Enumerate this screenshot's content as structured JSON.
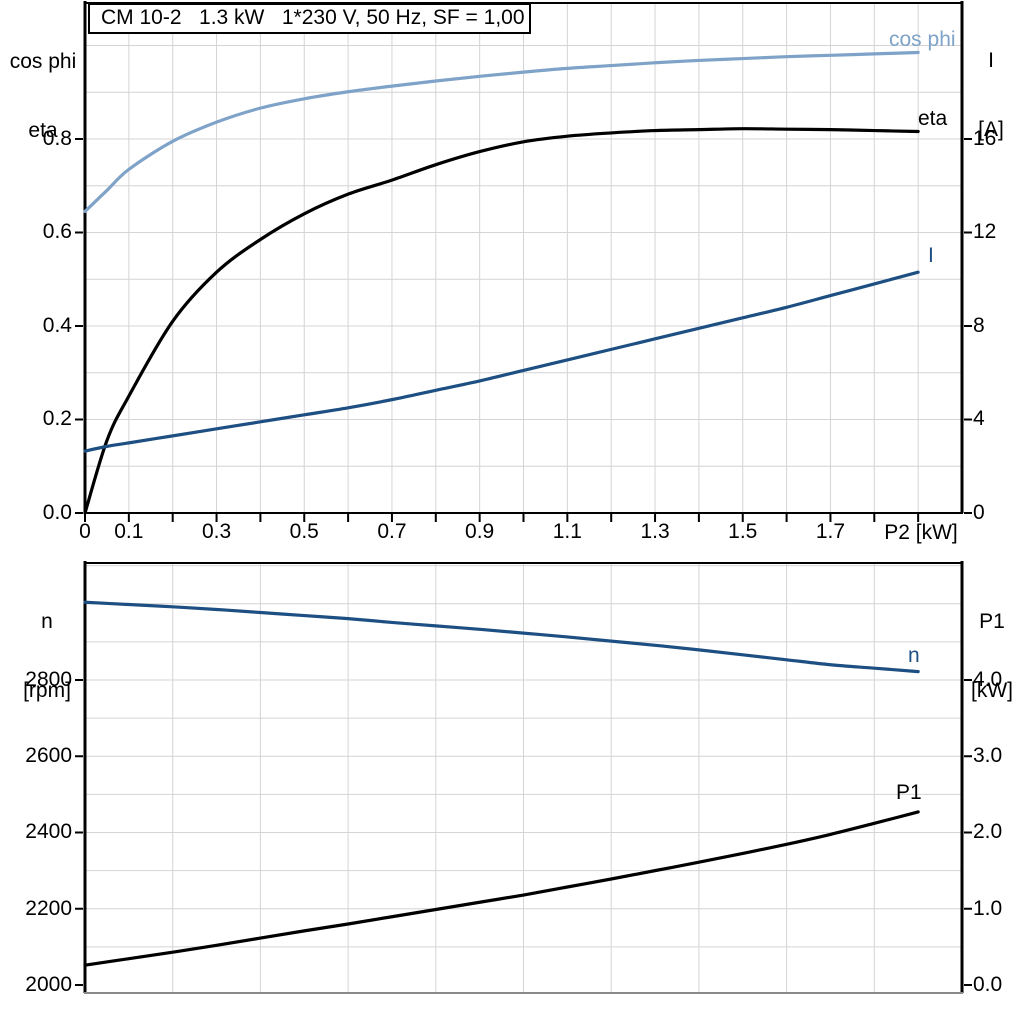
{
  "panel": {
    "background": "#ffffff",
    "colors": {
      "black": "#000000",
      "light_blue": "#7fa3c8",
      "dark_blue": "#1d4f82",
      "grid": "#d4d4d6",
      "frame_gray": "#8a8a8a"
    }
  },
  "chart_data": [
    {
      "id": "motor-electrical",
      "type": "line",
      "title": "CM 10-2   1.3 kW   1*230 V, 50 Hz, SF = 1,00",
      "xlabel": "P2 [kW]",
      "legend_position": "end-of-curve",
      "grid": true,
      "x_axis": {
        "min": 0,
        "max": 2.0,
        "grid_values": [
          0.1,
          0.2,
          0.3,
          0.4,
          0.5,
          0.6,
          0.7,
          0.8,
          0.9,
          1.0,
          1.1,
          1.2,
          1.3,
          1.4,
          1.5,
          1.6,
          1.7,
          1.8,
          1.9
        ],
        "tick_values": [
          0,
          0.1,
          0.2,
          0.3,
          0.4,
          0.5,
          0.6,
          0.7,
          0.8,
          0.9,
          1.0,
          1.1,
          1.2,
          1.3,
          1.4,
          1.5,
          1.6,
          1.7,
          1.8,
          1.9
        ],
        "tick_labels": [
          {
            "value": 0,
            "text": "0"
          },
          {
            "value": 0.1,
            "text": "0.1"
          },
          {
            "value": 0.3,
            "text": "0.3"
          },
          {
            "value": 0.5,
            "text": "0.5"
          },
          {
            "value": 0.7,
            "text": "0.7"
          },
          {
            "value": 0.9,
            "text": "0.9"
          },
          {
            "value": 1.1,
            "text": "1.1"
          },
          {
            "value": 1.3,
            "text": "1.3"
          },
          {
            "value": 1.5,
            "text": "1.5"
          },
          {
            "value": 1.7,
            "text": "1.7"
          }
        ]
      },
      "y_left": {
        "title_lines": [
          "cos phi",
          "eta"
        ],
        "min": 0,
        "max": 1.093,
        "grid_values": [
          0.1,
          0.2,
          0.3,
          0.4,
          0.5,
          0.6,
          0.7,
          0.8,
          0.9,
          1.0
        ],
        "ticks": [
          {
            "value": 0,
            "text": "0.0"
          },
          {
            "value": 0.2,
            "text": "0.2"
          },
          {
            "value": 0.4,
            "text": "0.4"
          },
          {
            "value": 0.6,
            "text": "0.6"
          },
          {
            "value": 0.8,
            "text": "0.8"
          }
        ]
      },
      "y_right": {
        "title_lines": [
          "I",
          "[A]"
        ],
        "offset_left": 0,
        "left_per_unit": 0.05,
        "ticks": [
          {
            "value": 0,
            "text": "0"
          },
          {
            "value": 4,
            "text": "4"
          },
          {
            "value": 8,
            "text": "8"
          },
          {
            "value": 12,
            "text": "12"
          },
          {
            "value": 16,
            "text": "16"
          }
        ]
      },
      "series": [
        {
          "name": "cos phi",
          "label": "cos phi",
          "axis": "left",
          "color": "#7fa3c8",
          "x": [
            0,
            0.05,
            0.1,
            0.2,
            0.3,
            0.4,
            0.5,
            0.6,
            0.7,
            0.8,
            0.9,
            1.0,
            1.1,
            1.2,
            1.3,
            1.4,
            1.5,
            1.6,
            1.7,
            1.8,
            1.9
          ],
          "y": [
            0.645,
            0.69,
            0.735,
            0.795,
            0.836,
            0.866,
            0.886,
            0.901,
            0.913,
            0.924,
            0.934,
            0.943,
            0.951,
            0.957,
            0.963,
            0.968,
            0.972,
            0.976,
            0.979,
            0.982,
            0.985
          ]
        },
        {
          "name": "eta",
          "label": "eta",
          "axis": "left",
          "color": "#000000",
          "x": [
            0,
            0.05,
            0.1,
            0.2,
            0.3,
            0.4,
            0.5,
            0.6,
            0.7,
            0.8,
            0.9,
            1.0,
            1.1,
            1.2,
            1.3,
            1.4,
            1.5,
            1.6,
            1.7,
            1.8,
            1.9
          ],
          "y": [
            0,
            0.155,
            0.25,
            0.41,
            0.515,
            0.585,
            0.64,
            0.682,
            0.712,
            0.745,
            0.773,
            0.794,
            0.806,
            0.813,
            0.818,
            0.82,
            0.822,
            0.821,
            0.82,
            0.818,
            0.816
          ]
        },
        {
          "name": "I",
          "label": "I",
          "axis": "right",
          "color": "#1d4f82",
          "unit": "A",
          "x": [
            0,
            0.05,
            0.1,
            0.2,
            0.3,
            0.4,
            0.5,
            0.6,
            0.7,
            0.8,
            0.9,
            1.0,
            1.1,
            1.2,
            1.3,
            1.4,
            1.5,
            1.6,
            1.7,
            1.8,
            1.9
          ],
          "y": [
            2.65,
            2.85,
            3.0,
            3.3,
            3.6,
            3.9,
            4.2,
            4.5,
            4.85,
            5.25,
            5.65,
            6.1,
            6.55,
            7.0,
            7.45,
            7.9,
            8.35,
            8.8,
            9.3,
            9.8,
            10.3
          ]
        }
      ]
    },
    {
      "id": "motor-mechanical",
      "type": "line",
      "title": "",
      "xlabel": "",
      "legend_position": "end-of-curve",
      "grid": true,
      "x_axis": {
        "min": 0,
        "max": 2.0,
        "grid_values": [
          0.2,
          0.4,
          0.6,
          0.8,
          1.0,
          1.2,
          1.4,
          1.6,
          1.8
        ],
        "tick_values": [],
        "tick_labels": []
      },
      "y_left": {
        "title_lines": [
          "n",
          "[rpm]"
        ],
        "min": 1979,
        "max": 3109.5,
        "grid_values": [
          2100,
          2200,
          2300,
          2400,
          2500,
          2600,
          2700,
          2800,
          2900,
          3000,
          3100
        ],
        "ticks": [
          {
            "value": 2000,
            "text": "2000"
          },
          {
            "value": 2200,
            "text": "2200"
          },
          {
            "value": 2400,
            "text": "2400"
          },
          {
            "value": 2600,
            "text": "2600"
          },
          {
            "value": 2800,
            "text": "2800"
          }
        ]
      },
      "y_right": {
        "title_lines": [
          "P1",
          "[kW]"
        ],
        "offset_left": 2000,
        "left_per_unit": 200,
        "ticks": [
          {
            "value": 0,
            "text": "0.0"
          },
          {
            "value": 1,
            "text": "1.0"
          },
          {
            "value": 2,
            "text": "2.0"
          },
          {
            "value": 3,
            "text": "3.0"
          },
          {
            "value": 4,
            "text": "4.0"
          }
        ]
      },
      "series": [
        {
          "name": "n",
          "label": "n",
          "axis": "left",
          "color": "#1d4f82",
          "unit": "rpm",
          "x": [
            0,
            0.1,
            0.2,
            0.3,
            0.4,
            0.5,
            0.6,
            0.7,
            0.8,
            0.9,
            1.0,
            1.1,
            1.2,
            1.3,
            1.4,
            1.5,
            1.6,
            1.7,
            1.8,
            1.9
          ],
          "y": [
            3004,
            2998,
            2992,
            2985,
            2977,
            2969,
            2961,
            2951,
            2942,
            2933,
            2923,
            2913,
            2902,
            2891,
            2879,
            2866,
            2853,
            2840,
            2831,
            2822
          ]
        },
        {
          "name": "P1",
          "label": "P1",
          "axis": "right",
          "color": "#000000",
          "unit": "kW",
          "x": [
            0,
            0.1,
            0.2,
            0.3,
            0.4,
            0.5,
            0.6,
            0.7,
            0.8,
            0.9,
            1.0,
            1.1,
            1.2,
            1.3,
            1.4,
            1.5,
            1.6,
            1.7,
            1.8,
            1.9
          ],
          "y": [
            0.26,
            0.345,
            0.43,
            0.52,
            0.615,
            0.71,
            0.8,
            0.895,
            0.99,
            1.085,
            1.18,
            1.285,
            1.39,
            1.5,
            1.61,
            1.725,
            1.845,
            1.975,
            2.12,
            2.27
          ]
        }
      ]
    }
  ]
}
